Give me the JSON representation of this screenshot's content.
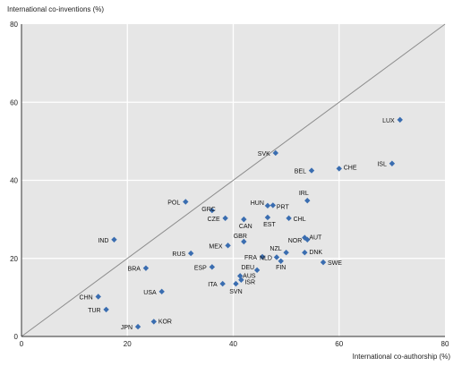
{
  "chart_data": {
    "type": "scatter",
    "xlabel": "International co-authorship  (%)",
    "ylabel": "International co-inventions (%)",
    "xlim": [
      0,
      80
    ],
    "ylim": [
      0,
      80
    ],
    "xticks": [
      0,
      20,
      40,
      60,
      80
    ],
    "yticks": [
      0,
      20,
      40,
      60,
      80
    ],
    "grid": true,
    "reference_line": "45-degree diagonal",
    "colors": {
      "plot_bg": "#e6e6e6",
      "marker": "#3a6db0",
      "grid": "#ffffff",
      "diagonal": "#8c8c8c"
    },
    "points": [
      {
        "label": "LUX",
        "x": 71.5,
        "y": 55.5
      },
      {
        "label": "ISL",
        "x": 70.0,
        "y": 44.3
      },
      {
        "label": "SVK",
        "x": 48.0,
        "y": 47.0
      },
      {
        "label": "CHE",
        "x": 60.0,
        "y": 43.0
      },
      {
        "label": "BEL",
        "x": 54.8,
        "y": 42.5
      },
      {
        "label": "IRL",
        "x": 54.0,
        "y": 34.8
      },
      {
        "label": "POL",
        "x": 31.0,
        "y": 34.5
      },
      {
        "label": "HUN",
        "x": 46.5,
        "y": 33.5
      },
      {
        "label": "PRT",
        "x": 47.5,
        "y": 33.6
      },
      {
        "label": "GRC",
        "x": 36.0,
        "y": 32.3
      },
      {
        "label": "CZE",
        "x": 38.5,
        "y": 30.3
      },
      {
        "label": "CAN",
        "x": 42.0,
        "y": 30.0
      },
      {
        "label": "EST",
        "x": 46.5,
        "y": 30.5
      },
      {
        "label": "CHL",
        "x": 50.5,
        "y": 30.3
      },
      {
        "label": "IND",
        "x": 17.5,
        "y": 24.8
      },
      {
        "label": "GBR",
        "x": 42.0,
        "y": 24.3
      },
      {
        "label": "MEX",
        "x": 39.0,
        "y": 23.3
      },
      {
        "label": "AUT",
        "x": 53.5,
        "y": 25.3
      },
      {
        "label": "NOR",
        "x": 54.0,
        "y": 24.8
      },
      {
        "label": "NZL",
        "x": 50.0,
        "y": 21.5
      },
      {
        "label": "RUS",
        "x": 32.0,
        "y": 21.3
      },
      {
        "label": "FRA",
        "x": 45.5,
        "y": 20.4
      },
      {
        "label": "DNK",
        "x": 53.5,
        "y": 21.5
      },
      {
        "label": "NLD",
        "x": 48.2,
        "y": 20.3
      },
      {
        "label": "SWE",
        "x": 57.0,
        "y": 19.0
      },
      {
        "label": "FIN",
        "x": 49.0,
        "y": 19.3
      },
      {
        "label": "BRA",
        "x": 23.5,
        "y": 17.5
      },
      {
        "label": "ESP",
        "x": 36.0,
        "y": 17.8
      },
      {
        "label": "DEU",
        "x": 44.5,
        "y": 17.0
      },
      {
        "label": "JPN",
        "x": 22.0,
        "y": 2.5
      },
      {
        "label": "KOR",
        "x": 25.0,
        "y": 3.8
      },
      {
        "label": "ISR",
        "x": 41.5,
        "y": 14.5
      },
      {
        "label": "ITA",
        "x": 38.0,
        "y": 13.5
      },
      {
        "label": "SVN",
        "x": 40.5,
        "y": 13.5
      },
      {
        "label": "USA",
        "x": 26.5,
        "y": 11.5
      },
      {
        "label": "CHN",
        "x": 14.5,
        "y": 10.2
      },
      {
        "label": "TUR",
        "x": 16.0,
        "y": 6.9
      },
      {
        "label": "AUS",
        "x": 41.3,
        "y": 15.5
      }
    ]
  }
}
